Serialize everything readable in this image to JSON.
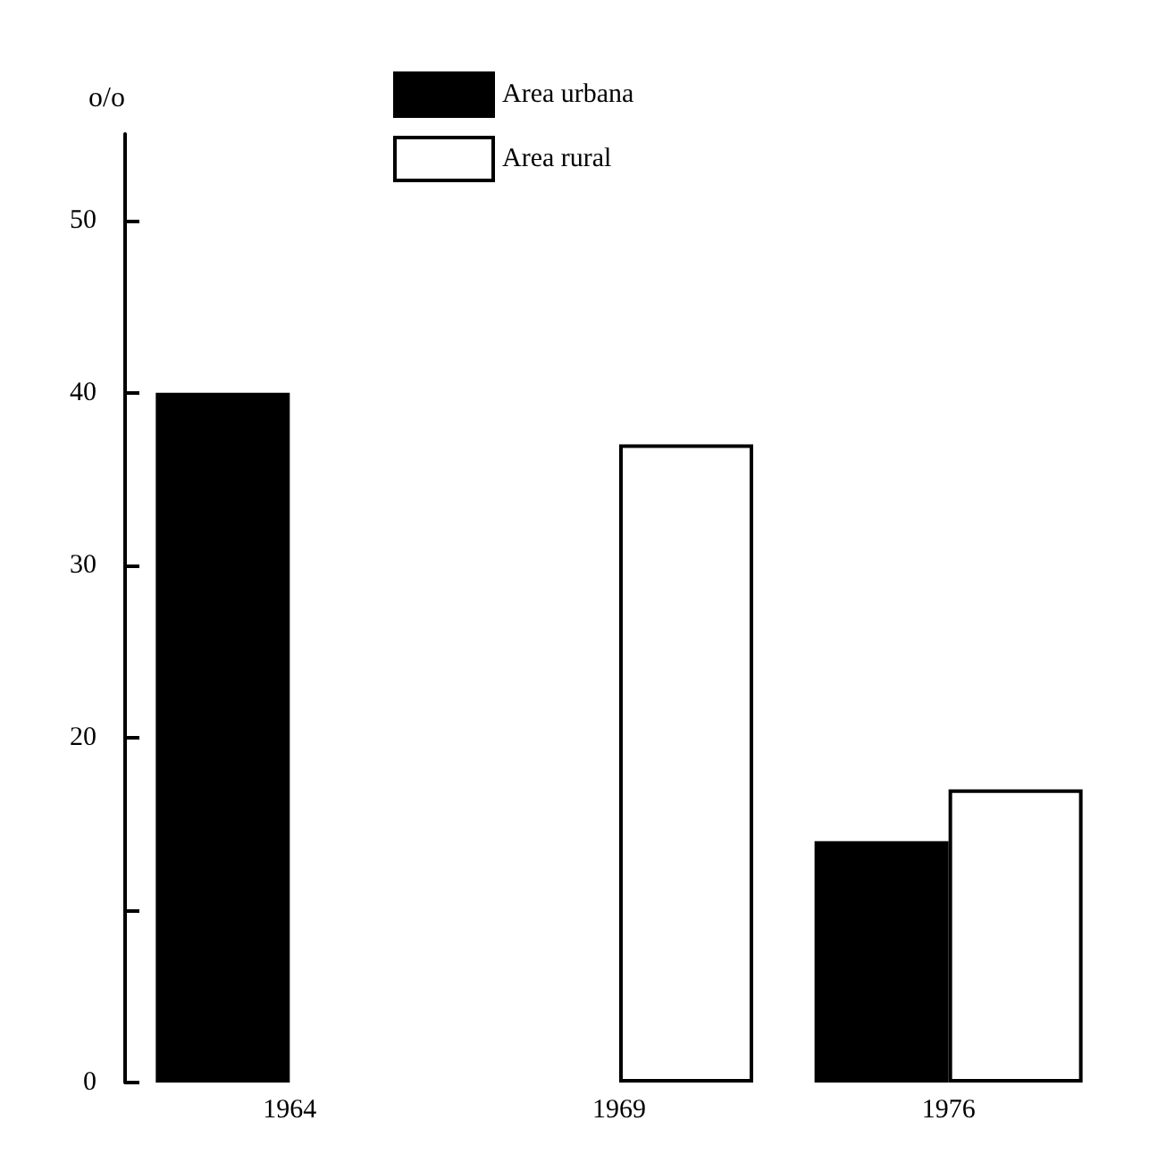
{
  "chart_data": {
    "type": "bar",
    "ylabel": "o/o",
    "categories": [
      "1964",
      "1969",
      "1976"
    ],
    "series": [
      {
        "name": "Area urbana",
        "color": "#000000",
        "values": [
          40,
          null,
          14
        ]
      },
      {
        "name": "Area rural",
        "color": "#ffffff",
        "values": [
          null,
          37,
          17
        ]
      }
    ],
    "ylim": [
      0,
      55
    ],
    "yticks": [
      0,
      {
        "value": 10,
        "label": null
      },
      20,
      30,
      40,
      50
    ],
    "grid": false,
    "legend": "top"
  }
}
